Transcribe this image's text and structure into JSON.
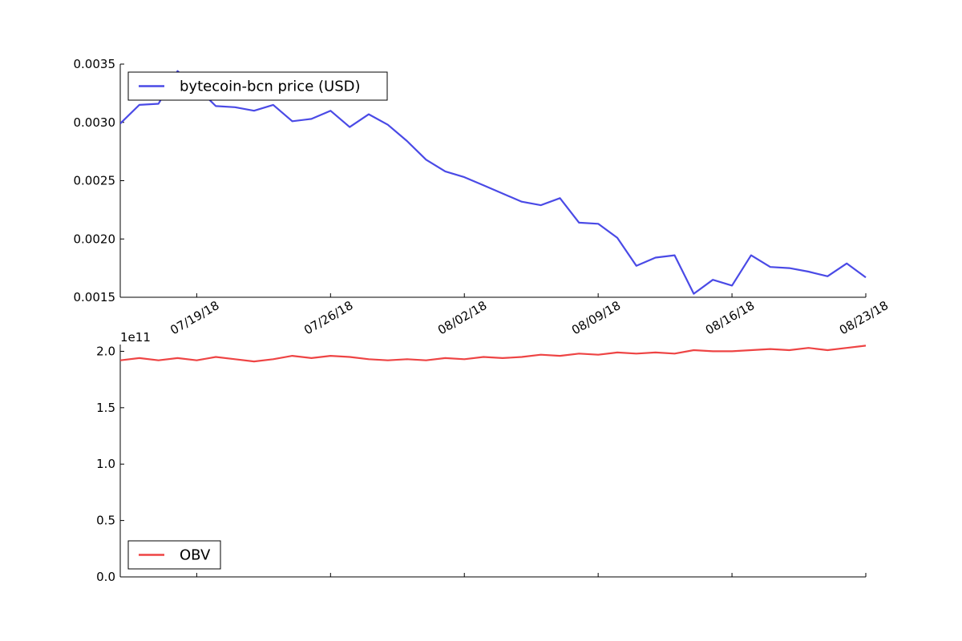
{
  "chart_data": [
    {
      "type": "line",
      "title": "",
      "xlabel": "",
      "ylabel": "",
      "ylim": [
        0.0015,
        0.0035
      ],
      "yticks": [
        0.0015,
        0.002,
        0.0025,
        0.003,
        0.0035
      ],
      "ytick_labels": [
        "0.0015",
        "0.0020",
        "0.0025",
        "0.0030",
        "0.0035"
      ],
      "xlim": [
        "2018-07-15",
        "2018-08-23"
      ],
      "xtick_dates": [
        "2018-07-19",
        "2018-07-26",
        "2018-08-02",
        "2018-08-09",
        "2018-08-16",
        "2018-08-23"
      ],
      "xtick_labels": [
        "07/19/18",
        "07/26/18",
        "08/02/18",
        "08/09/18",
        "08/16/18",
        "08/23/18"
      ],
      "legend_position": "upper-left",
      "grid": false,
      "series": [
        {
          "name": "bytecoin-bcn price (USD)",
          "color": "#4a4ae6",
          "x": [
            "2018-07-15",
            "2018-07-16",
            "2018-07-17",
            "2018-07-18",
            "2018-07-19",
            "2018-07-20",
            "2018-07-21",
            "2018-07-22",
            "2018-07-23",
            "2018-07-24",
            "2018-07-25",
            "2018-07-26",
            "2018-07-27",
            "2018-07-28",
            "2018-07-29",
            "2018-07-30",
            "2018-07-31",
            "2018-08-01",
            "2018-08-02",
            "2018-08-03",
            "2018-08-04",
            "2018-08-05",
            "2018-08-06",
            "2018-08-07",
            "2018-08-08",
            "2018-08-09",
            "2018-08-10",
            "2018-08-11",
            "2018-08-12",
            "2018-08-13",
            "2018-08-14",
            "2018-08-15",
            "2018-08-16",
            "2018-08-17",
            "2018-08-18",
            "2018-08-19",
            "2018-08-20",
            "2018-08-21",
            "2018-08-22",
            "2018-08-23"
          ],
          "y": [
            0.00299,
            0.00315,
            0.00316,
            0.00344,
            0.0033,
            0.00314,
            0.00313,
            0.0031,
            0.00315,
            0.00301,
            0.00303,
            0.0031,
            0.00296,
            0.00307,
            0.00298,
            0.00284,
            0.00268,
            0.00258,
            0.00253,
            0.00246,
            0.00239,
            0.00232,
            0.00229,
            0.00235,
            0.00214,
            0.00213,
            0.00201,
            0.00177,
            0.00184,
            0.00186,
            0.00153,
            0.00165,
            0.0016,
            0.00186,
            0.00176,
            0.00175,
            0.00172,
            0.00168,
            0.00179,
            0.00167
          ]
        }
      ]
    },
    {
      "type": "line",
      "title": "",
      "xlabel": "",
      "ylabel": "",
      "ylim": [
        0,
        2.06
      ],
      "y_multiplier": "1e11",
      "yticks": [
        0.0,
        0.5,
        1.0,
        1.5,
        2.0
      ],
      "ytick_labels": [
        "0.0",
        "0.5",
        "1.0",
        "1.5",
        "2.0"
      ],
      "xlim": [
        "2018-07-15",
        "2018-08-23"
      ],
      "legend_position": "lower-left",
      "grid": false,
      "series": [
        {
          "name": "OBV",
          "color": "#ee4444",
          "x": [
            "2018-07-15",
            "2018-07-16",
            "2018-07-17",
            "2018-07-18",
            "2018-07-19",
            "2018-07-20",
            "2018-07-21",
            "2018-07-22",
            "2018-07-23",
            "2018-07-24",
            "2018-07-25",
            "2018-07-26",
            "2018-07-27",
            "2018-07-28",
            "2018-07-29",
            "2018-07-30",
            "2018-07-31",
            "2018-08-01",
            "2018-08-02",
            "2018-08-03",
            "2018-08-04",
            "2018-08-05",
            "2018-08-06",
            "2018-08-07",
            "2018-08-08",
            "2018-08-09",
            "2018-08-10",
            "2018-08-11",
            "2018-08-12",
            "2018-08-13",
            "2018-08-14",
            "2018-08-15",
            "2018-08-16",
            "2018-08-17",
            "2018-08-18",
            "2018-08-19",
            "2018-08-20",
            "2018-08-21",
            "2018-08-22",
            "2018-08-23"
          ],
          "y": [
            1.92,
            1.94,
            1.92,
            1.94,
            1.92,
            1.95,
            1.93,
            1.91,
            1.93,
            1.96,
            1.94,
            1.96,
            1.95,
            1.93,
            1.92,
            1.93,
            1.92,
            1.94,
            1.93,
            1.95,
            1.94,
            1.95,
            1.97,
            1.96,
            1.98,
            1.97,
            1.99,
            1.98,
            1.99,
            1.98,
            2.01,
            2.0,
            2.0,
            2.01,
            2.02,
            2.01,
            2.03,
            2.01,
            2.03,
            2.05
          ]
        }
      ]
    }
  ]
}
